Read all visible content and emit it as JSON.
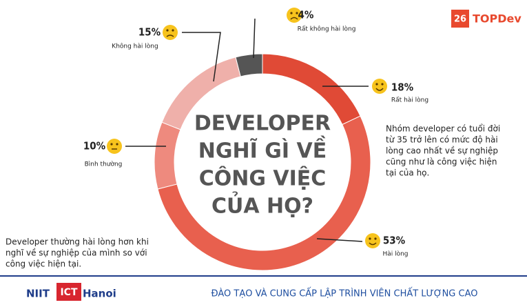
{
  "chart_data": {
    "type": "donut",
    "title_lines": [
      "DEVELOPER",
      "NGHĨ GÌ VỀ",
      "CÔNG VIỆC",
      "CỦA HỌ?"
    ],
    "categories": [
      "Rất không hài lòng",
      "Rất hài lòng",
      "Hài lòng",
      "Bình thường",
      "Không hài lòng"
    ],
    "values": [
      4,
      18,
      53,
      10,
      15
    ],
    "value_labels": [
      "4%",
      "18%",
      "53%",
      "10%",
      "15%"
    ],
    "colors": [
      "#555555",
      "#e04a36",
      "#e8604e",
      "#ee8a7e",
      "#efb0aa"
    ],
    "annotations": [
      [
        "Nhóm developer có tuổi đời",
        "từ 35 trở lên có mức độ hài",
        "lòng cao nhất về sự nghiệp",
        "cũng như là công việc hiện",
        "tại của họ."
      ],
      [
        "Developer thường hài lòng hơn khi",
        "nghĩ về sự nghiệp của mình so với",
        "công việc hiện tại."
      ]
    ]
  },
  "brand": {
    "number": "26",
    "name": "TOPDev"
  },
  "footer": {
    "logo_a": "NIIT",
    "logo_b": "ICT",
    "logo_c": "Hanoi",
    "tagline": "ĐÀO TẠO VÀ CUNG CẤP LẬP TRÌNH VIÊN CHẤT LƯỢNG CAO"
  }
}
